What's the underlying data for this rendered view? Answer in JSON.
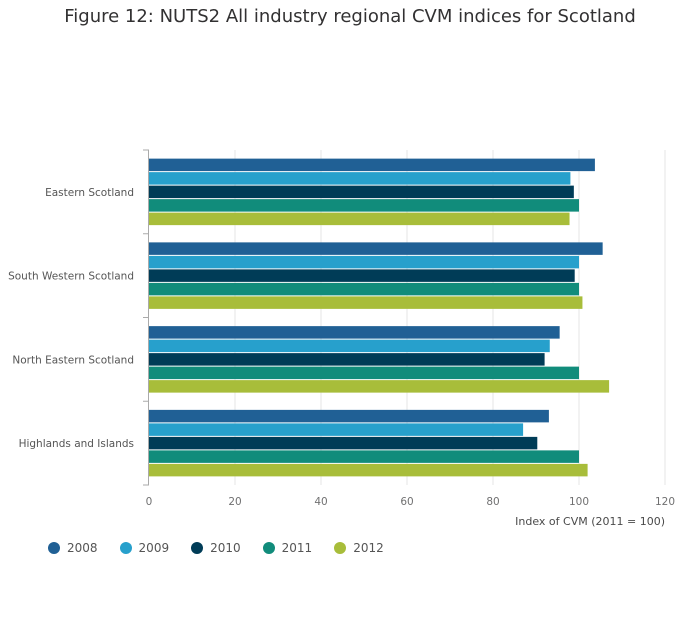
{
  "chart_data": {
    "type": "bar",
    "orientation": "horizontal",
    "title": "Figure 12: NUTS2 All industry regional CVM indices for Scotland",
    "categories": [
      "Eastern Scotland",
      "South Western Scotland",
      "North Eastern Scotland",
      "Highlands and Islands"
    ],
    "series": [
      {
        "name": "2008",
        "color": "#206095",
        "values": [
          103.7,
          105.5,
          95.5,
          93.0
        ]
      },
      {
        "name": "2009",
        "color": "#27a0cc",
        "values": [
          98.0,
          100.0,
          93.2,
          87.0
        ]
      },
      {
        "name": "2010",
        "color": "#003c57",
        "values": [
          98.8,
          99.0,
          92.0,
          90.3
        ]
      },
      {
        "name": "2011",
        "color": "#118c7b",
        "values": [
          100.0,
          100.0,
          100.0,
          100.0
        ]
      },
      {
        "name": "2012",
        "color": "#a8bd3a",
        "values": [
          97.8,
          100.8,
          107.0,
          102.0
        ]
      }
    ],
    "xlabel": "Index of CVM (2011 = 100)",
    "ylabel": "",
    "xlim": [
      0,
      120
    ],
    "xticks": [
      "0",
      "20",
      "40",
      "60",
      "80",
      "100",
      "120"
    ],
    "grid": true,
    "legend_position": "bottom-left"
  }
}
